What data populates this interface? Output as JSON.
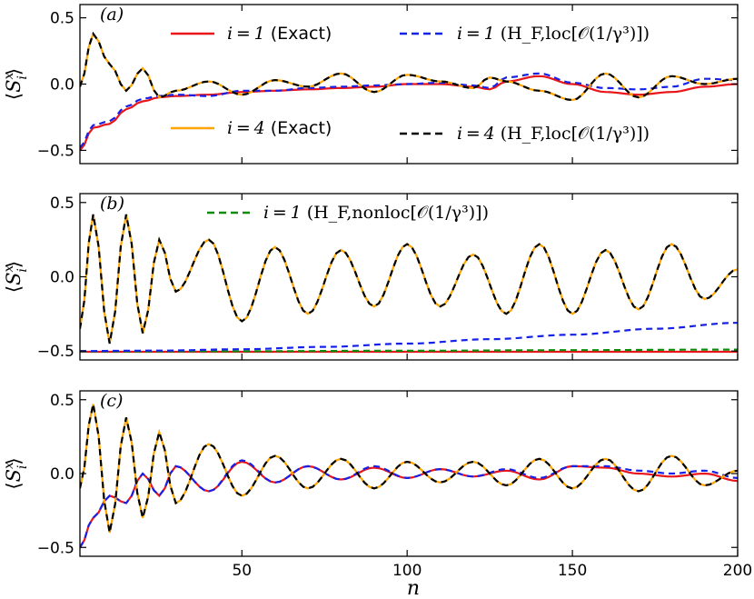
{
  "chart_data": {
    "type": "line",
    "xlabel": "n",
    "ylabel": "⟨S_i^x⟩",
    "xlim": [
      1,
      200
    ],
    "xticks": [
      50,
      100,
      150,
      200
    ],
    "colors": {
      "red": "#e8161b",
      "blue": "#1621e8",
      "orange": "#ffa500",
      "black": "#000000",
      "green": "#0f8a0f"
    },
    "legend": [
      {
        "id": "exact1",
        "math": "i = 1",
        "text": "(Exact)",
        "color": "#e8161b",
        "style": "solid"
      },
      {
        "id": "loc1",
        "math": "i = 1",
        "text": "(H_F,loc[𝒪(1/γ³)])",
        "color": "#1621e8",
        "style": "dashed"
      },
      {
        "id": "exact4",
        "math": "i = 4",
        "text": "(Exact)",
        "color": "#ffa500",
        "style": "solid"
      },
      {
        "id": "loc4",
        "math": "i = 4",
        "text": "(H_F,loc[𝒪(1/γ³)])",
        "color": "#000000",
        "style": "dashed"
      },
      {
        "id": "nonloc1",
        "math": "i = 1",
        "text": "(H_F,nonloc[𝒪(1/γ³)])",
        "color": "#0f8a0f",
        "style": "dashed"
      }
    ],
    "panels": [
      {
        "label": "(a)",
        "ylim": [
          -0.6,
          0.6
        ],
        "yticks": [
          0.5,
          0.0,
          -0.5
        ],
        "ytick_labels": [
          "0.5",
          "0.0",
          "−0.5"
        ],
        "series": [
          {
            "name": "i = 1 (Exact)",
            "color": "#e8161b",
            "style": "solid",
            "x": [
              1,
              5,
              10,
              15,
              20,
              25,
              30,
              40,
              50,
              60,
              70,
              80,
              90,
              100,
              110,
              120,
              125,
              130,
              140,
              150,
              160,
              170,
              180,
              190,
              200
            ],
            "y": [
              -0.5,
              -0.33,
              -0.3,
              -0.19,
              -0.13,
              -0.1,
              -0.09,
              -0.08,
              -0.06,
              -0.05,
              -0.04,
              -0.03,
              -0.02,
              0.0,
              0.0,
              -0.02,
              -0.04,
              0.02,
              0.06,
              0.0,
              -0.06,
              -0.08,
              -0.06,
              -0.02,
              0.0
            ]
          },
          {
            "name": "i = 1 (H_F,loc)",
            "color": "#1621e8",
            "style": "dashed",
            "x": [
              1,
              5,
              10,
              15,
              20,
              25,
              30,
              40,
              50,
              60,
              70,
              80,
              90,
              100,
              110,
              120,
              125,
              130,
              140,
              150,
              160,
              170,
              180,
              190,
              200
            ],
            "y": [
              -0.48,
              -0.31,
              -0.28,
              -0.17,
              -0.11,
              -0.09,
              -0.08,
              -0.09,
              -0.05,
              -0.05,
              -0.03,
              -0.02,
              -0.01,
              0.0,
              0.01,
              -0.01,
              -0.03,
              0.05,
              0.08,
              0.01,
              -0.03,
              -0.04,
              -0.02,
              0.04,
              0.03
            ]
          },
          {
            "name": "i = 4 (Exact)",
            "color": "#ffa500",
            "style": "solid",
            "x": [
              1,
              5,
              10,
              15,
              20,
              25,
              30,
              40,
              50,
              60,
              70,
              80,
              90,
              100,
              110,
              120,
              125,
              130,
              140,
              150,
              160,
              170,
              180,
              190,
              200
            ],
            "y": [
              -0.02,
              0.38,
              0.15,
              -0.05,
              0.12,
              -0.1,
              -0.05,
              0.02,
              -0.08,
              0.03,
              -0.02,
              0.08,
              -0.06,
              0.07,
              0.02,
              -0.03,
              0.05,
              0.02,
              -0.05,
              -0.12,
              0.08,
              -0.1,
              0.06,
              0.0,
              0.04
            ]
          },
          {
            "name": "i = 4 (H_F,loc)",
            "color": "#000000",
            "style": "dashed",
            "x": [
              1,
              5,
              10,
              15,
              20,
              25,
              30,
              40,
              50,
              60,
              70,
              80,
              90,
              100,
              110,
              120,
              125,
              130,
              140,
              150,
              160,
              170,
              180,
              190,
              200
            ],
            "y": [
              -0.02,
              0.38,
              0.15,
              -0.05,
              0.12,
              -0.1,
              -0.05,
              0.02,
              -0.08,
              0.03,
              -0.02,
              0.08,
              -0.06,
              0.07,
              0.02,
              -0.03,
              0.05,
              0.02,
              -0.05,
              -0.12,
              0.08,
              -0.1,
              0.06,
              0.0,
              0.04
            ]
          }
        ]
      },
      {
        "label": "(b)",
        "ylim": [
          -0.56,
          0.56
        ],
        "yticks": [
          0.5,
          0.0,
          -0.5
        ],
        "ytick_labels": [
          "0.5",
          "0.0",
          "−0.5"
        ],
        "series": [
          {
            "name": "i = 1 (Exact)",
            "color": "#e8161b",
            "style": "solid",
            "x": [
              1,
              50,
              100,
              150,
              200
            ],
            "y": [
              -0.505,
              -0.505,
              -0.505,
              -0.505,
              -0.505
            ]
          },
          {
            "name": "i = 1 (H_F,nonloc)",
            "color": "#0f8a0f",
            "style": "dashed",
            "x": [
              1,
              50,
              100,
              150,
              200
            ],
            "y": [
              -0.503,
              -0.501,
              -0.498,
              -0.494,
              -0.49
            ]
          },
          {
            "name": "i = 1 (H_F,loc)",
            "color": "#1621e8",
            "style": "dashed",
            "x": [
              1,
              25,
              50,
              75,
              100,
              125,
              150,
              175,
              200
            ],
            "y": [
              -0.5,
              -0.497,
              -0.488,
              -0.472,
              -0.45,
              -0.42,
              -0.39,
              -0.35,
              -0.31
            ]
          },
          {
            "name": "i = 4 (Exact)",
            "color": "#ffa500",
            "style": "solid",
            "x": [
              1,
              5,
              10,
              15,
              20,
              25,
              30,
              40,
              50,
              60,
              70,
              80,
              90,
              100,
              110,
              120,
              130,
              140,
              150,
              160,
              170,
              180,
              190,
              200
            ],
            "y": [
              -0.35,
              0.42,
              -0.45,
              0.42,
              -0.38,
              0.25,
              -0.1,
              0.25,
              -0.3,
              0.2,
              -0.25,
              0.18,
              -0.2,
              0.22,
              -0.2,
              0.15,
              -0.25,
              0.22,
              -0.25,
              0.18,
              -0.22,
              0.22,
              -0.15,
              0.05
            ]
          },
          {
            "name": "i = 4 (H_F,loc)",
            "color": "#000000",
            "style": "dashed",
            "x": [
              1,
              5,
              10,
              15,
              20,
              25,
              30,
              40,
              50,
              60,
              70,
              80,
              90,
              100,
              110,
              120,
              130,
              140,
              150,
              160,
              170,
              180,
              190,
              200
            ],
            "y": [
              -0.35,
              0.42,
              -0.45,
              0.42,
              -0.38,
              0.25,
              -0.1,
              0.25,
              -0.3,
              0.2,
              -0.25,
              0.18,
              -0.2,
              0.22,
              -0.2,
              0.15,
              -0.25,
              0.22,
              -0.25,
              0.18,
              -0.22,
              0.22,
              -0.15,
              0.05
            ]
          }
        ]
      },
      {
        "label": "(c)",
        "ylim": [
          -0.56,
          0.56
        ],
        "yticks": [
          0.5,
          0.0,
          -0.5
        ],
        "ytick_labels": [
          "0.5",
          "0.0",
          "−0.5"
        ],
        "series": [
          {
            "name": "i = 1 (Exact)",
            "color": "#e8161b",
            "style": "solid",
            "x": [
              1,
              5,
              10,
              15,
              20,
              25,
              30,
              40,
              50,
              60,
              70,
              80,
              90,
              100,
              110,
              120,
              130,
              140,
              150,
              160,
              170,
              180,
              190,
              200
            ],
            "y": [
              -0.5,
              -0.3,
              -0.15,
              -0.2,
              0.0,
              -0.15,
              0.05,
              -0.12,
              0.08,
              -0.06,
              0.05,
              -0.04,
              0.04,
              -0.03,
              0.03,
              -0.02,
              0.02,
              -0.04,
              0.05,
              0.04,
              0.0,
              -0.02,
              0.0,
              -0.05
            ]
          },
          {
            "name": "i = 1 (H_F,loc)",
            "color": "#1621e8",
            "style": "dashed",
            "x": [
              1,
              5,
              10,
              15,
              20,
              25,
              30,
              40,
              50,
              60,
              70,
              80,
              90,
              100,
              110,
              120,
              130,
              140,
              150,
              160,
              170,
              180,
              190,
              200
            ],
            "y": [
              -0.5,
              -0.3,
              -0.15,
              -0.2,
              0.0,
              -0.15,
              0.05,
              -0.12,
              0.09,
              -0.06,
              0.05,
              -0.04,
              0.05,
              -0.03,
              0.03,
              -0.02,
              0.03,
              -0.03,
              0.05,
              0.05,
              0.02,
              0.0,
              0.02,
              -0.03
            ]
          },
          {
            "name": "i = 4 (Exact)",
            "color": "#ffa500",
            "style": "solid",
            "x": [
              1,
              5,
              10,
              15,
              20,
              25,
              30,
              40,
              50,
              60,
              70,
              80,
              90,
              100,
              110,
              120,
              130,
              140,
              150,
              160,
              170,
              180,
              190,
              200
            ],
            "y": [
              -0.1,
              0.47,
              -0.4,
              0.38,
              -0.3,
              0.28,
              -0.2,
              0.2,
              -0.15,
              0.12,
              -0.1,
              0.1,
              -0.1,
              0.08,
              -0.06,
              0.08,
              -0.08,
              0.1,
              -0.1,
              0.1,
              -0.12,
              0.12,
              -0.08,
              0.02
            ]
          },
          {
            "name": "i = 4 (H_F,loc)",
            "color": "#000000",
            "style": "dashed",
            "x": [
              1,
              5,
              10,
              15,
              20,
              25,
              30,
              40,
              50,
              60,
              70,
              80,
              90,
              100,
              110,
              120,
              130,
              140,
              150,
              160,
              170,
              180,
              190,
              200
            ],
            "y": [
              -0.1,
              0.47,
              -0.4,
              0.38,
              -0.3,
              0.28,
              -0.2,
              0.2,
              -0.15,
              0.12,
              -0.1,
              0.1,
              -0.1,
              0.08,
              -0.06,
              0.08,
              -0.08,
              0.1,
              -0.1,
              0.1,
              -0.12,
              0.12,
              -0.08,
              0.02
            ]
          }
        ]
      }
    ]
  }
}
